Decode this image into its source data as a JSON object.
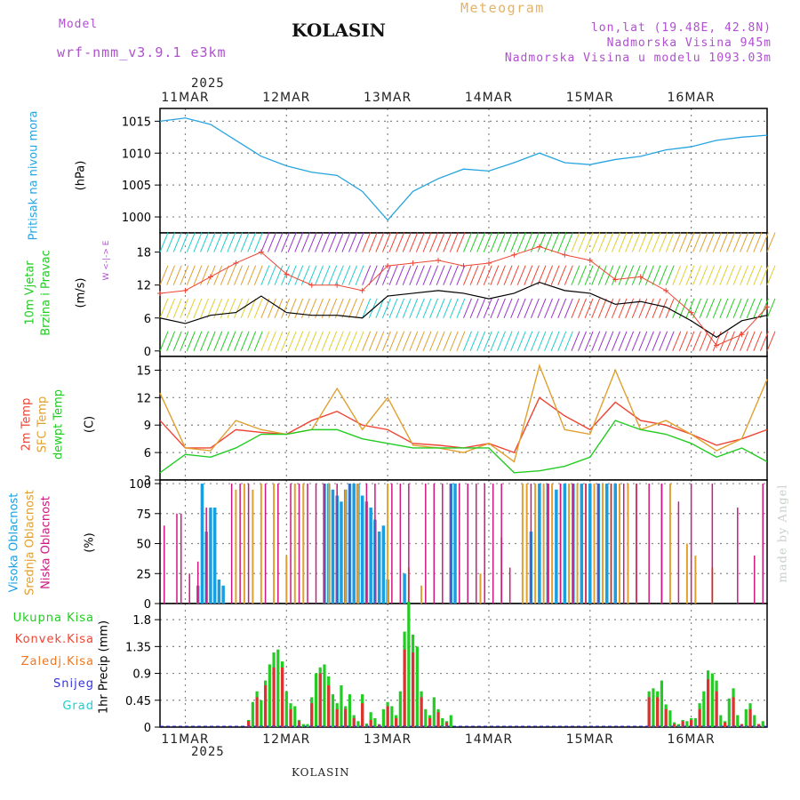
{
  "header": {
    "model_label": "Model",
    "model_name": "wrf-nmm_v3.9.1  e3km",
    "station": "KOLASIN",
    "product": "Meteogram",
    "lonlat": "lon,lat (19.48E, 42.8N)",
    "altitude": "Nadmorska Visina 945m",
    "model_altitude": "Nadmorska Visina u modelu 1093.03m"
  },
  "colors": {
    "violet": "#b04fd0",
    "orange": "#e6b266",
    "pressure": "#27a4e0",
    "wind_black": "#000000",
    "temp2m": "#ee4433",
    "sfc": "#e0a030",
    "dew": "#22cc22",
    "high": "#1a9ee0",
    "mid": "#e0a030",
    "low": "#cc1a80",
    "total": "#22cc22",
    "conv": "#e03030",
    "frz": "#ee7722",
    "snow": "#3333dd",
    "hail": "#22cccc"
  },
  "time_axis": {
    "year": "2025",
    "days": [
      "11MAR",
      "12MAR",
      "13MAR",
      "14MAR",
      "15MAR",
      "16MAR"
    ],
    "day_hours_start": -6,
    "span_hours": 144
  },
  "footer": {
    "station": "KOLASIN",
    "made_by": "made by Angel"
  },
  "chart_data": [
    {
      "id": "pressure",
      "type": "line",
      "title": "Pritisak na nivou mora",
      "ylabel": "(hPa)",
      "ylim": [
        997.5,
        1017
      ],
      "yticks": [
        1000,
        1005,
        1010,
        1015
      ],
      "tick_labels": [
        "1000",
        "1005",
        "1010",
        "1015"
      ],
      "x_hours": [
        -6,
        0,
        6,
        12,
        18,
        24,
        30,
        36,
        42,
        48,
        54,
        60,
        66,
        72,
        78,
        84,
        90,
        96,
        102,
        108,
        114,
        120,
        126,
        132,
        138
      ],
      "values": [
        1015,
        1015.5,
        1014.5,
        1012,
        1009.5,
        1008,
        1007,
        1006.5,
        1004,
        999.5,
        1004,
        1006,
        1007.5,
        1007.2,
        1008.5,
        1010,
        1008.5,
        1008.2,
        1009,
        1009.5,
        1010.5,
        1011,
        1012,
        1012.5,
        1012.8
      ]
    },
    {
      "id": "wind",
      "type": "line",
      "title_lines": [
        "10m Vjetar",
        "Brzina i Pravac"
      ],
      "ylabel": "(m/s)",
      "compass": "W <-|-> E",
      "ylim": [
        -1,
        21.5
      ],
      "yticks": [
        0,
        6,
        12,
        18
      ],
      "tick_labels": [
        "0",
        "6",
        "12",
        "18"
      ],
      "series": [
        {
          "name": "speed",
          "x_hours": [
            -6,
            0,
            6,
            12,
            18,
            24,
            30,
            36,
            42,
            48,
            54,
            60,
            66,
            72,
            78,
            84,
            90,
            96,
            102,
            108,
            114,
            120,
            126,
            132,
            138
          ],
          "values": [
            6,
            5,
            6.5,
            7,
            10,
            7,
            6.5,
            6.5,
            6,
            10,
            10.5,
            11,
            10.5,
            9.5,
            10.5,
            12.5,
            11,
            10.5,
            8.5,
            9,
            8,
            5.5,
            2.5,
            5.5,
            6.5
          ]
        },
        {
          "name": "gust",
          "x_hours": [
            -6,
            0,
            6,
            12,
            18,
            24,
            30,
            36,
            42,
            48,
            54,
            60,
            66,
            72,
            78,
            84,
            90,
            96,
            102,
            108,
            114,
            120,
            126,
            132,
            138
          ],
          "values": [
            10.5,
            11,
            13.5,
            16,
            18,
            14,
            12,
            12,
            11,
            15.5,
            16,
            16.5,
            15.5,
            16,
            17.5,
            19,
            17.5,
            16.5,
            13,
            13.5,
            11,
            7,
            1,
            3,
            8
          ]
        }
      ],
      "bands": [
        0,
        6,
        12,
        18
      ]
    },
    {
      "id": "temperature",
      "type": "line",
      "title_lines": [
        "2m Temp",
        "SFC Temp",
        "dewpt Temp"
      ],
      "ylabel": "(C)",
      "ylim": [
        3,
        16.5
      ],
      "yticks": [
        3,
        6,
        9,
        12,
        15
      ],
      "tick_labels": [
        "3",
        "6",
        "9",
        "12",
        "15"
      ],
      "series": [
        {
          "name": "2m Temp",
          "x_hours": [
            -6,
            0,
            6,
            12,
            18,
            24,
            30,
            36,
            42,
            48,
            54,
            60,
            66,
            72,
            78,
            84,
            90,
            96,
            102,
            108,
            114,
            120,
            126,
            132,
            138
          ],
          "values": [
            9.5,
            6.5,
            6.5,
            8.5,
            8.2,
            8,
            9.5,
            10.5,
            9,
            8.5,
            7,
            6.8,
            6.5,
            7,
            6,
            12,
            10,
            8.5,
            11.5,
            9.5,
            9,
            8,
            6.8,
            7.5,
            8.5
          ]
        },
        {
          "name": "SFC Temp",
          "x_hours": [
            -6,
            0,
            6,
            12,
            18,
            24,
            30,
            36,
            42,
            48,
            54,
            60,
            66,
            72,
            78,
            84,
            90,
            96,
            102,
            108,
            114,
            120,
            126,
            132,
            138
          ],
          "values": [
            12.5,
            6.5,
            6.2,
            9.5,
            8.5,
            8,
            8.5,
            13,
            8.5,
            12,
            6.8,
            6.5,
            6,
            7,
            5,
            15.5,
            8.5,
            8,
            15,
            8.5,
            9.5,
            8,
            6.2,
            7.5,
            14
          ]
        },
        {
          "name": "dewpt Temp",
          "x_hours": [
            -6,
            0,
            6,
            12,
            18,
            24,
            30,
            36,
            42,
            48,
            54,
            60,
            66,
            72,
            78,
            84,
            90,
            96,
            102,
            108,
            114,
            120,
            126,
            132,
            138
          ],
          "values": [
            3.8,
            5.8,
            5.5,
            6.5,
            8,
            8,
            8.5,
            8.5,
            7.5,
            7,
            6.5,
            6.5,
            6.5,
            6.5,
            3.8,
            4,
            4.5,
            5.5,
            9.5,
            8.5,
            8,
            7,
            5.5,
            6.5,
            5
          ]
        }
      ]
    },
    {
      "id": "clouds",
      "type": "bar",
      "title_lines": [
        "Visoka Oblacnost",
        "Srednja Oblacnost",
        "Niska Oblacnost"
      ],
      "ylabel": "(%)",
      "ylim": [
        0,
        103
      ],
      "yticks": [
        0,
        25,
        50,
        75,
        100
      ],
      "tick_labels": [
        "0",
        "25",
        "50",
        "75",
        "100"
      ],
      "series": [
        {
          "name": "Visoka Oblacnost",
          "x_hours": [
            3,
            4,
            5,
            6,
            7,
            8,
            9,
            33,
            34,
            35,
            36,
            37,
            38,
            39,
            40,
            41,
            42,
            43,
            44,
            45,
            46,
            47,
            48,
            52,
            63,
            64,
            82,
            84,
            86,
            88,
            90,
            92,
            94,
            96,
            98,
            100,
            102
          ],
          "values": [
            15,
            100,
            60,
            80,
            80,
            20,
            15,
            100,
            100,
            95,
            90,
            85,
            95,
            100,
            100,
            100,
            90,
            85,
            80,
            70,
            60,
            65,
            20,
            25,
            100,
            100,
            60,
            100,
            100,
            95,
            100,
            100,
            100,
            100,
            100,
            100,
            100
          ]
        },
        {
          "name": "Srednja Oblacnost",
          "x_hours": [
            12,
            14,
            16,
            18,
            21,
            24,
            26,
            28,
            34,
            38,
            41,
            48,
            53,
            56,
            70,
            75,
            80,
            81,
            83,
            85,
            87,
            89,
            91,
            93,
            95,
            97,
            99,
            101,
            103,
            105,
            107,
            113,
            115,
            119,
            121,
            125
          ],
          "values": [
            95,
            100,
            95,
            100,
            100,
            40,
            100,
            100,
            100,
            95,
            100,
            100,
            30,
            15,
            25,
            55,
            100,
            100,
            100,
            100,
            100,
            100,
            100,
            100,
            100,
            100,
            100,
            100,
            100,
            100,
            100,
            100,
            100,
            50,
            40,
            30
          ]
        },
        {
          "name": "Niska Oblacnost",
          "x_hours": [
            -5,
            -2,
            -1,
            1,
            3,
            5,
            11,
            13,
            15,
            19,
            22,
            25,
            27,
            29,
            31,
            33,
            36,
            39,
            43,
            45,
            49,
            51,
            53,
            57,
            59,
            61,
            63,
            65,
            67,
            69,
            71,
            73,
            75,
            77,
            82,
            86,
            89,
            92,
            95,
            98,
            101,
            104,
            107,
            110,
            113,
            117,
            120,
            125,
            131,
            135,
            137
          ],
          "values": [
            65,
            75,
            75,
            25,
            35,
            80,
            100,
            100,
            100,
            100,
            100,
            100,
            100,
            100,
            100,
            100,
            100,
            100,
            100,
            100,
            100,
            100,
            100,
            100,
            100,
            100,
            100,
            100,
            100,
            100,
            100,
            100,
            100,
            30,
            100,
            100,
            100,
            100,
            100,
            100,
            100,
            100,
            100,
            100,
            100,
            85,
            100,
            100,
            80,
            40,
            100
          ]
        }
      ]
    },
    {
      "id": "precip",
      "type": "bar",
      "title_lines": [
        "Ukupna Kisa",
        "Konvek.Kisa",
        "Zaledj.Kisa",
        "Snijeg",
        "Grad"
      ],
      "ylabel": "1hr Precip (mm)",
      "ylim": [
        0,
        2.07
      ],
      "yticks": [
        0,
        0.45,
        0.9,
        1.35,
        1.8
      ],
      "tick_labels": [
        "0",
        "0.45",
        "0.9",
        "1.35",
        "1.8"
      ],
      "series": [
        {
          "name": "Ukupna Kisa",
          "x_hours": [
            15,
            16,
            17,
            18,
            19,
            20,
            21,
            22,
            23,
            24,
            25,
            26,
            27,
            28,
            29,
            30,
            31,
            32,
            33,
            34,
            35,
            36,
            37,
            38,
            39,
            40,
            41,
            42,
            43,
            44,
            45,
            46,
            47,
            48,
            49,
            50,
            51,
            52,
            53,
            54,
            55,
            56,
            57,
            58,
            59,
            60,
            61,
            62,
            63,
            110,
            111,
            112,
            113,
            114,
            115,
            116,
            117,
            118,
            119,
            120,
            121,
            122,
            123,
            124,
            125,
            126,
            127,
            128,
            129,
            130,
            131,
            132,
            133,
            134,
            135,
            136,
            137
          ],
          "values": [
            0.12,
            0.42,
            0.6,
            0.45,
            0.78,
            1.05,
            1.25,
            1.3,
            1.1,
            0.6,
            0.4,
            0.35,
            0.12,
            0.05,
            0.05,
            0.5,
            0.9,
            1.0,
            1.05,
            0.85,
            0.55,
            0.4,
            0.7,
            0.35,
            0.55,
            0.2,
            0.1,
            0.55,
            0.06,
            0.25,
            0.15,
            0.05,
            0.3,
            0.42,
            0.35,
            0.2,
            0.6,
            1.6,
            2.1,
            1.55,
            1.35,
            0.6,
            0.3,
            0.2,
            0.5,
            0.3,
            0.15,
            0.1,
            0.2,
            0.6,
            0.65,
            0.6,
            0.78,
            0.38,
            0.28,
            0.08,
            0.05,
            0.12,
            0.1,
            0.15,
            0.15,
            0.4,
            0.6,
            0.95,
            0.9,
            0.78,
            0.2,
            0.1,
            0.48,
            0.65,
            0.2,
            0.05,
            0.3,
            0.4,
            0.2,
            0.05,
            0.1
          ]
        },
        {
          "name": "Konvek.Kisa",
          "x_hours": [
            15,
            17,
            19,
            21,
            23,
            25,
            27,
            30,
            32,
            34,
            36,
            38,
            40,
            42,
            44,
            46,
            48,
            50,
            52,
            54,
            56,
            58,
            60,
            62,
            110,
            112,
            114,
            116,
            118,
            120,
            122,
            124,
            126,
            128,
            130,
            132,
            134,
            136
          ],
          "values": [
            0.1,
            0.5,
            0.7,
            1.0,
            1.0,
            0.3,
            0.1,
            0.4,
            0.9,
            0.7,
            0.3,
            0.3,
            0.15,
            0.4,
            0.12,
            0.04,
            0.35,
            0.15,
            1.3,
            1.25,
            0.5,
            0.15,
            0.25,
            0.08,
            0.5,
            0.5,
            0.3,
            0.05,
            0.1,
            0.12,
            0.3,
            0.8,
            0.6,
            0.08,
            0.5,
            0.05,
            0.3,
            0.05
          ]
        },
        {
          "name": "Zaledj.Kisa",
          "x_hours": [],
          "values": []
        },
        {
          "name": "Snijeg",
          "x_hours": [],
          "values": []
        },
        {
          "name": "Grad",
          "x_hours": [],
          "values": []
        }
      ]
    }
  ]
}
